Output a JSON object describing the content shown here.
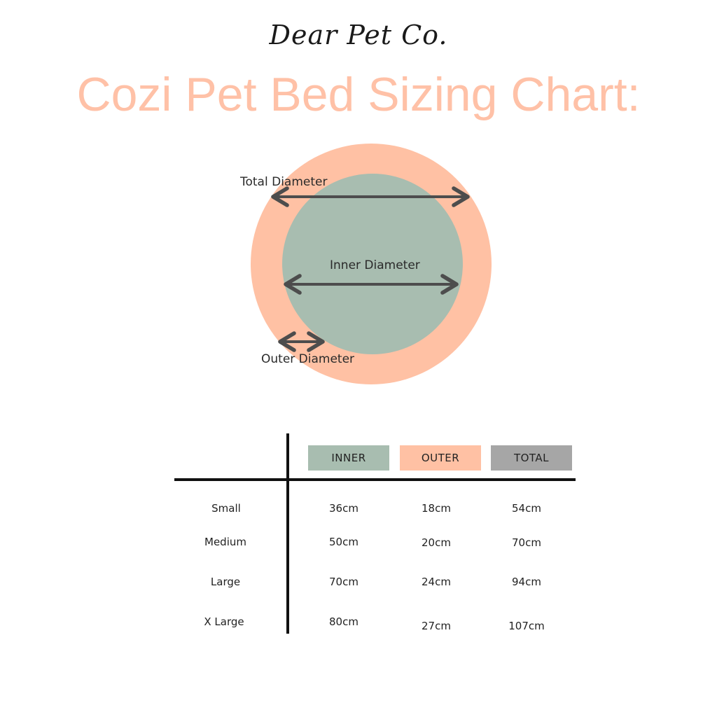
{
  "brand": "Dear Pet Co.",
  "title": "Cozi Pet Bed Sizing Chart:",
  "colors": {
    "title": "#ffc1a7",
    "inner": "#a8bdb0",
    "outer": "#ffc1a4",
    "total": "#a6a6a6",
    "arrow": "#4d4d4d"
  },
  "diagram": {
    "total_label": "Total Diameter",
    "inner_label": "Inner Diameter",
    "outer_label": "Outer Diameter"
  },
  "table": {
    "headers": {
      "inner": "INNER",
      "outer": "OUTER",
      "total": "TOTAL"
    },
    "rows": [
      {
        "size": "Small",
        "inner": "36cm",
        "outer": "18cm",
        "total": "54cm"
      },
      {
        "size": "Medium",
        "inner": "50cm",
        "outer": "20cm",
        "total": "70cm"
      },
      {
        "size": "Large",
        "inner": "70cm",
        "outer": "24cm",
        "total": "94cm"
      },
      {
        "size": "X Large",
        "inner": "80cm",
        "outer": "27cm",
        "total": "107cm"
      }
    ]
  }
}
